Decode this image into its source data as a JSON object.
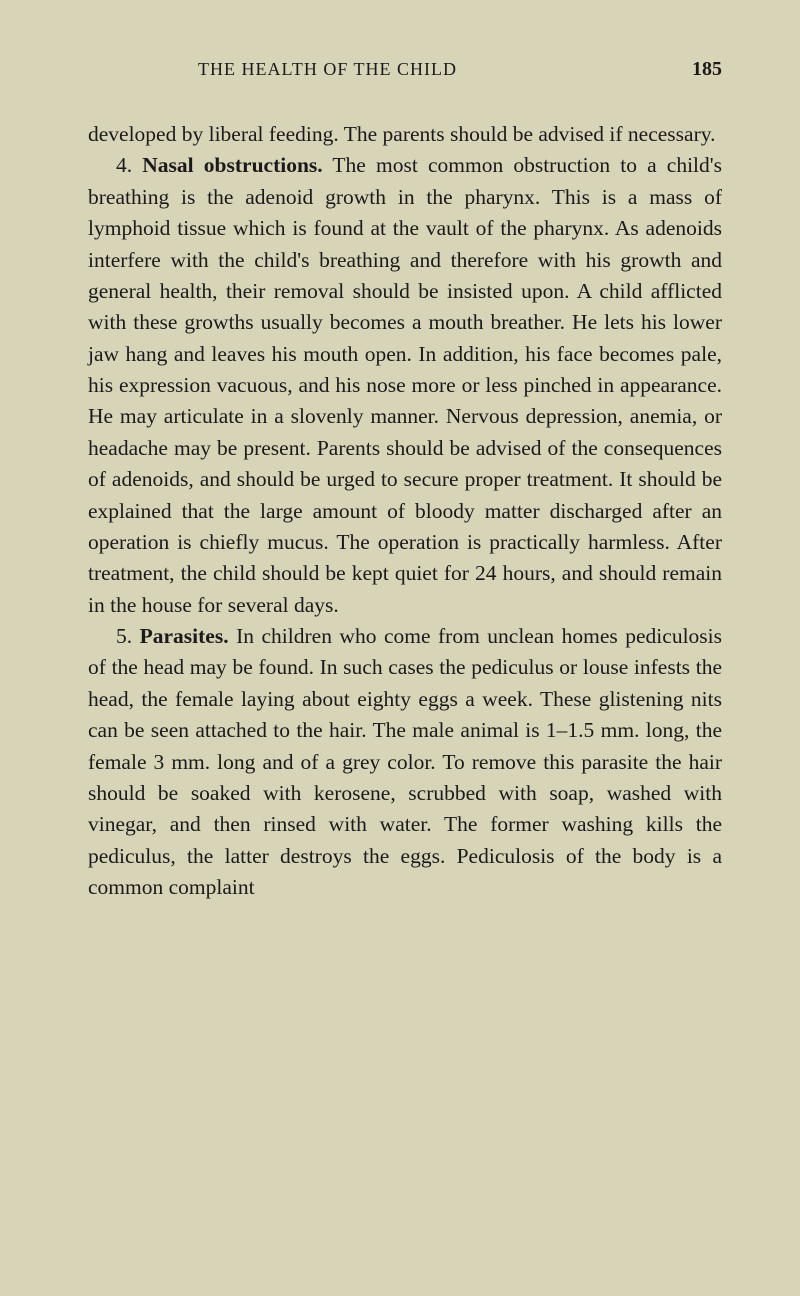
{
  "header": {
    "title": "THE HEALTH OF THE CHILD",
    "pageNumber": "185"
  },
  "paragraphs": {
    "p1": {
      "text": "developed by liberal feeding. The parents should be advised if necessary."
    },
    "p2": {
      "num": "4.",
      "heading": "Nasal obstructions.",
      "text": "The most common obstruc­tion to a child's breathing is the adenoid growth in the pharynx. This is a mass of lymphoid tissue which is found at the vault of the pharynx. As adenoids inter­fere with the child's breathing and therefore with his growth and general health, their removal should be insisted upon. A child afflicted with these growths usually becomes a mouth breather. He lets his lower jaw hang and leaves his mouth open. In addition, his face becomes pale, his expression vacuous, and his nose more or less pinched in appearance. He may articu­late in a slovenly manner. Nervous depression, anemia, or headache may be present. Parents should be ad­vised of the consequences of adenoids, and should be urged to secure proper treatment. It should be ex­plained that the large amount of bloody matter dis­charged after an operation is chiefly mucus. The operation is practically harmless. After treatment, the child should be kept quiet for 24 hours, and should remain in the house for several days."
    },
    "p3": {
      "num": "5.",
      "heading": "Parasites.",
      "text": "In children who come from unclean homes pediculosis of the head may be found. In such cases the pediculus or louse infests the head, the female laying about eighty eggs a week. These glistening nits can be seen attached to the hair. The male animal is 1–1.5 mm. long, the female 3 mm. long and of a grey color. To remove this parasite the hair should be soaked with kerosene, scrubbed with soap, washed with vinegar, and then rinsed with water. The former washing kills the pediculus, the latter destroys the eggs. Pediculosis of the body is a common complaint"
    }
  }
}
